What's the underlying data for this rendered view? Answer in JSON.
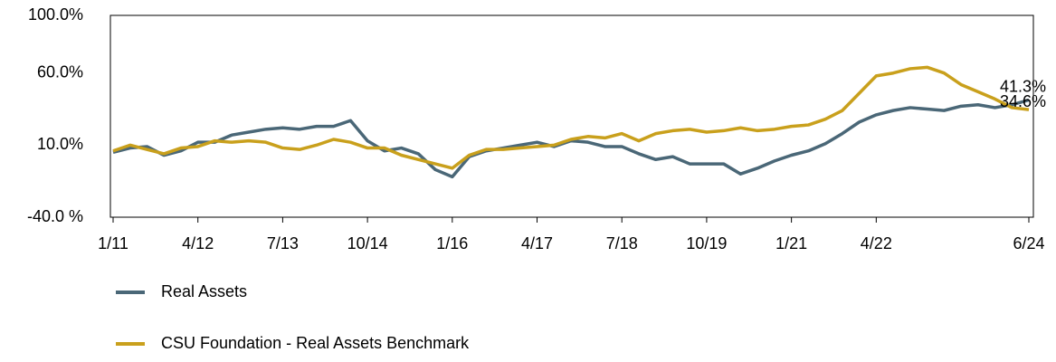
{
  "chart_data": {
    "type": "line",
    "categories": [
      "1/11",
      null,
      null,
      null,
      null,
      "4/12",
      null,
      null,
      null,
      null,
      "7/13",
      null,
      null,
      null,
      null,
      "10/14",
      null,
      null,
      null,
      null,
      "1/16",
      null,
      null,
      null,
      null,
      "4/17",
      null,
      null,
      null,
      null,
      "7/18",
      null,
      null,
      null,
      null,
      "10/19",
      null,
      null,
      null,
      null,
      "1/21",
      null,
      null,
      null,
      null,
      "4/22",
      null,
      null,
      null,
      null,
      null,
      null,
      null,
      null,
      "6/24"
    ],
    "series": [
      {
        "name": "Real Assets",
        "color": "#4a6777",
        "values": [
          5,
          8,
          9,
          3,
          6,
          12,
          12,
          17,
          19,
          21,
          22,
          21,
          23,
          23,
          27,
          13,
          6,
          8,
          4,
          -7,
          -12,
          2,
          6,
          8,
          10,
          12,
          9,
          13,
          12,
          9,
          9,
          4,
          0,
          2,
          -3,
          -3,
          -3,
          -10,
          -6,
          -1,
          3,
          6,
          11,
          18,
          26,
          31,
          34,
          36,
          35,
          34,
          37,
          38,
          36,
          38,
          41.3
        ],
        "value_labels": [
          null,
          null,
          null,
          null,
          null,
          null,
          null,
          null,
          null,
          null,
          null,
          null,
          null,
          null,
          null,
          null,
          null,
          null,
          null,
          null,
          null,
          null,
          null,
          null,
          null,
          null,
          null,
          null,
          null,
          null,
          null,
          null,
          null,
          null,
          null,
          null,
          null,
          null,
          null,
          null,
          null,
          null,
          null,
          null,
          null,
          null,
          null,
          null,
          null,
          null,
          null,
          null,
          null,
          null,
          "41.3%"
        ]
      },
      {
        "name": "CSU Foundation - Real Assets Benchmark",
        "color": "#c9a01c",
        "values": [
          6,
          10,
          7,
          4,
          8,
          9,
          13,
          12,
          13,
          12,
          8,
          7,
          10,
          14,
          12,
          8,
          8,
          3,
          0,
          -3,
          -6,
          3,
          7,
          7,
          8,
          9,
          10,
          14,
          16,
          15,
          18,
          13,
          18,
          20,
          21,
          19,
          20,
          22,
          20,
          21,
          23,
          24,
          28,
          34,
          46,
          58,
          60,
          63,
          64,
          60,
          52,
          47,
          42,
          36,
          34.6
        ],
        "value_labels": [
          null,
          null,
          null,
          null,
          null,
          null,
          null,
          null,
          null,
          null,
          null,
          null,
          null,
          null,
          null,
          null,
          null,
          null,
          null,
          null,
          null,
          null,
          null,
          null,
          null,
          null,
          null,
          null,
          null,
          null,
          null,
          null,
          null,
          null,
          null,
          null,
          null,
          null,
          null,
          null,
          null,
          null,
          null,
          null,
          null,
          null,
          null,
          null,
          null,
          null,
          null,
          null,
          null,
          null,
          "34.6%"
        ]
      }
    ],
    "ylim": [
      -40,
      100
    ],
    "yticks": [
      {
        "value": -40,
        "label": "-40.0 %"
      },
      {
        "value": 10,
        "label": "10.0%"
      },
      {
        "value": 60,
        "label": "60.0%"
      },
      {
        "value": 100,
        "label": "100.0%"
      }
    ]
  }
}
